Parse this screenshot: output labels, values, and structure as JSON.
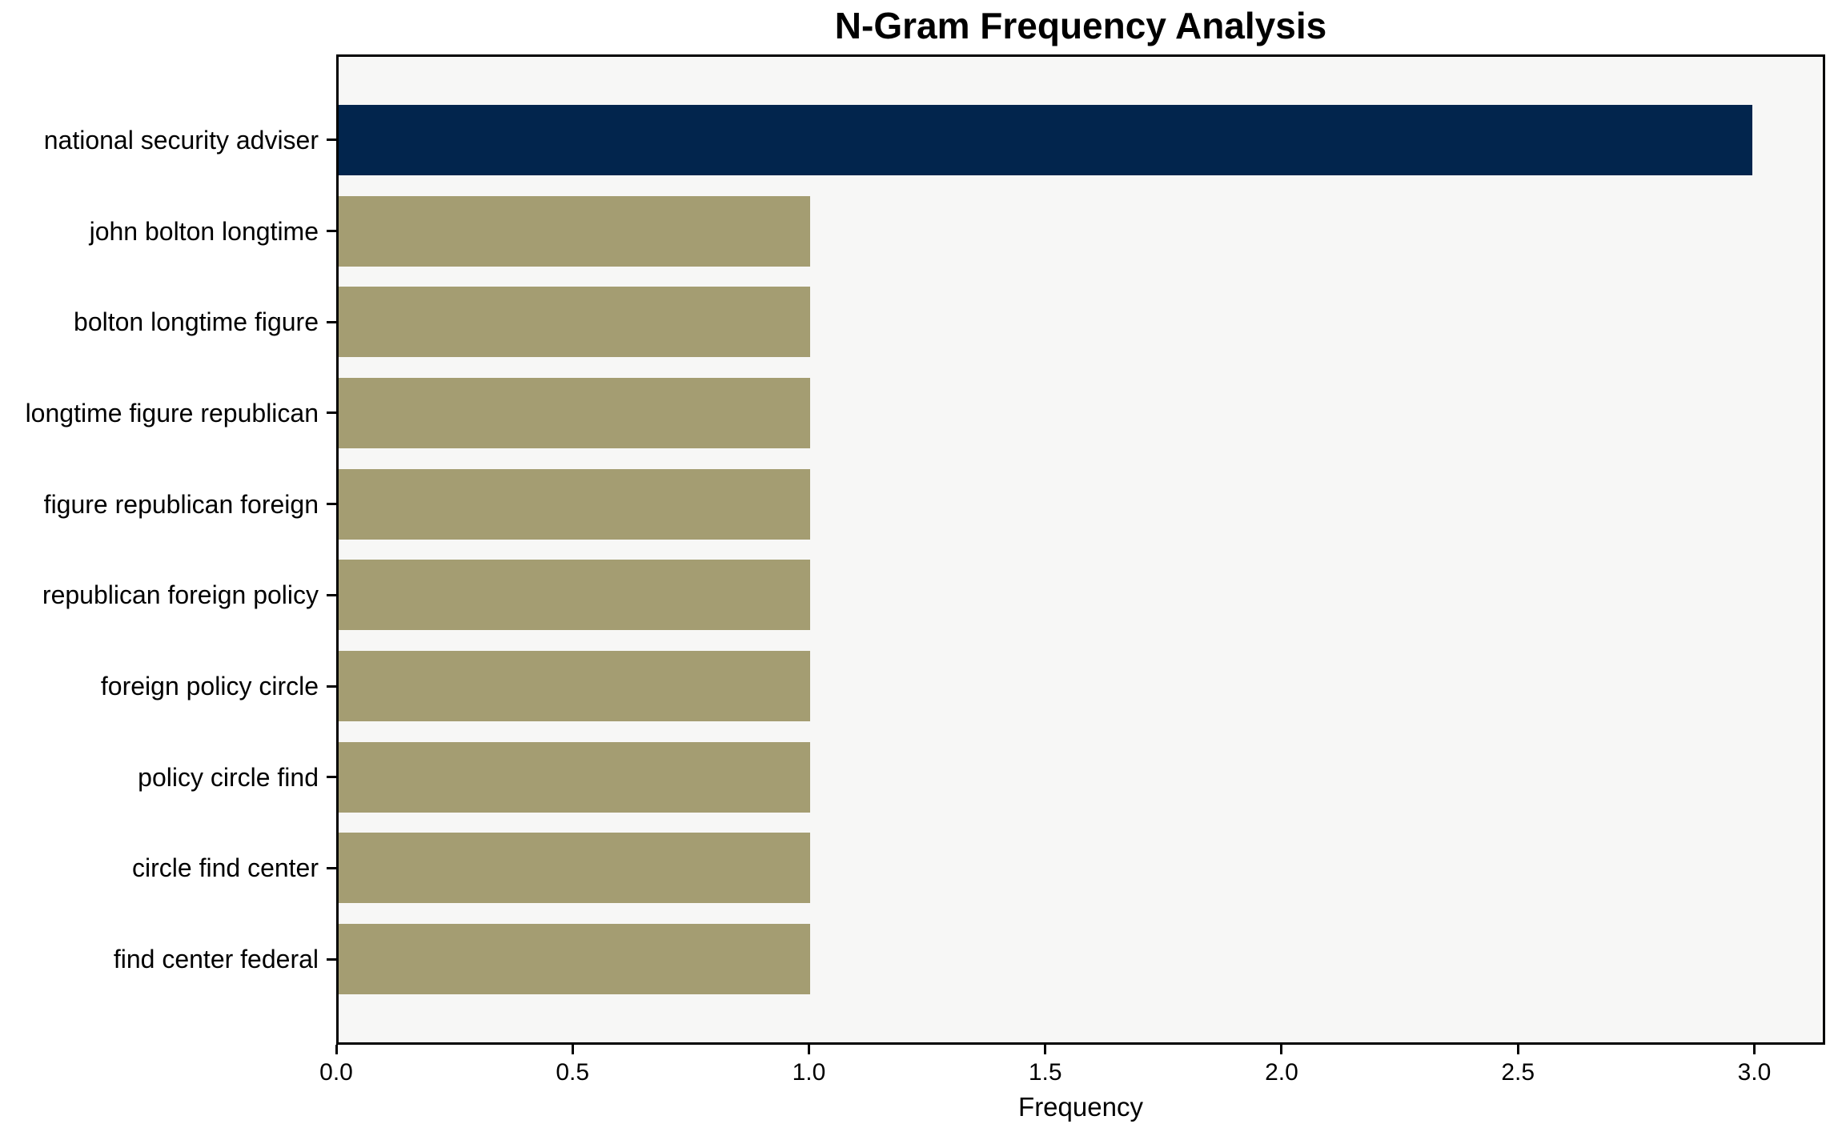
{
  "chart_data": {
    "type": "bar",
    "orientation": "horizontal",
    "title": "N-Gram Frequency Analysis",
    "xlabel": "Frequency",
    "ylabel": "",
    "categories": [
      "national security adviser",
      "john bolton longtime",
      "bolton longtime figure",
      "longtime figure republican",
      "figure republican foreign",
      "republican foreign policy",
      "foreign policy circle",
      "policy circle find",
      "circle find center",
      "find center federal"
    ],
    "values": [
      3,
      1,
      1,
      1,
      1,
      1,
      1,
      1,
      1,
      1
    ],
    "bar_colors": [
      "#02254d",
      "#a49d72",
      "#a49d72",
      "#a49d72",
      "#a49d72",
      "#a49d72",
      "#a49d72",
      "#a49d72",
      "#a49d72",
      "#a49d72"
    ],
    "xlim": [
      0,
      3.15
    ],
    "xticks": [
      0.0,
      0.5,
      1.0,
      1.5,
      2.0,
      2.5,
      3.0
    ],
    "xtick_decimals": 1,
    "grid": false,
    "legend": false,
    "plot_background": "#f7f7f6",
    "figure_background": "#ffffff",
    "spine_color": "#000000"
  }
}
